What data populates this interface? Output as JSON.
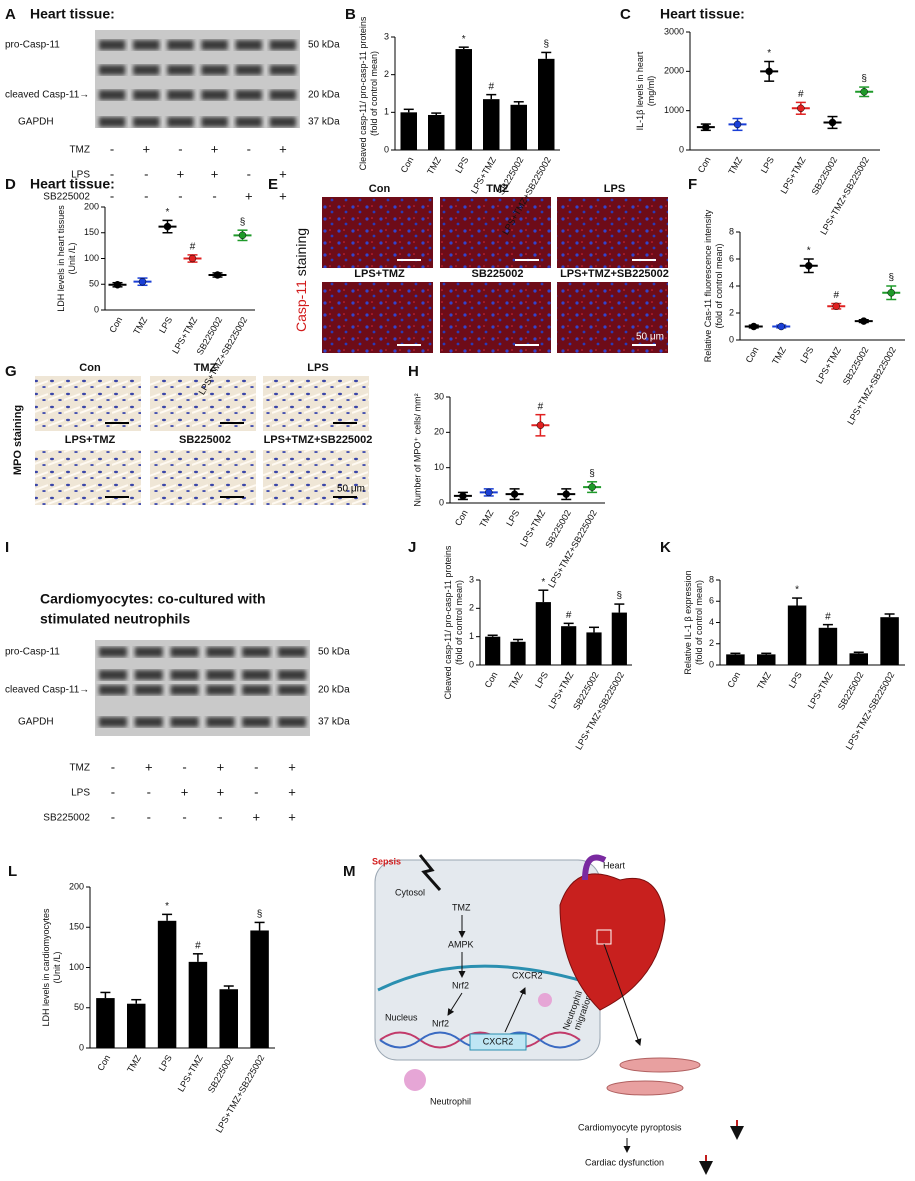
{
  "chart_data": [
    {
      "panel": "B",
      "type": "bar",
      "ylabel": [
        "Cleaved casp-11/ pro-casp-11 proteins",
        "(fold of control mean)"
      ],
      "categories": [
        "Con",
        "TMZ",
        "LPS",
        "LPS+TMZ",
        "SB225002",
        "LPS+TMZ+SB225002"
      ],
      "values": [
        1.0,
        0.93,
        2.68,
        1.35,
        1.2,
        2.42
      ],
      "errors": [
        0.08,
        0.05,
        0.05,
        0.12,
        0.08,
        0.17
      ],
      "annotations": [
        null,
        null,
        "*",
        "#",
        null,
        "§"
      ],
      "color": "#000000",
      "ylim": [
        0,
        3
      ],
      "yticks": [
        0,
        1,
        2,
        3
      ]
    },
    {
      "panel": "C",
      "title": "Heart tissue:",
      "type": "dot",
      "ylabel": [
        "IL-1β levels in heart",
        "(mg/ml)"
      ],
      "categories": [
        "Con",
        "TMZ",
        "LPS",
        "LPS+TMZ",
        "SB225002",
        "LPS+TMZ+SB225002"
      ],
      "values": [
        580,
        650,
        2000,
        1060,
        700,
        1480
      ],
      "errors": [
        80,
        150,
        250,
        150,
        150,
        120
      ],
      "annotations": [
        null,
        null,
        "*",
        "#",
        null,
        "§"
      ],
      "colors": [
        "#000000",
        "#1a3fd6",
        "#000000",
        "#e02020",
        "#000000",
        "#1f9a2a"
      ],
      "ylim": [
        0,
        3000
      ],
      "yticks": [
        0,
        1000,
        2000,
        3000
      ]
    },
    {
      "panel": "D",
      "title": "Heart tissue:",
      "type": "dot",
      "ylabel": [
        "LDH levels in heart tissues",
        "(Unit /L)"
      ],
      "categories": [
        "Con",
        "TMZ",
        "LPS",
        "LPS+TMZ",
        "SB225002",
        "LPS+TMZ+SB225002"
      ],
      "values": [
        49,
        55,
        162,
        100,
        68,
        145
      ],
      "errors": [
        4,
        7,
        12,
        7,
        4,
        10
      ],
      "annotations": [
        null,
        null,
        "*",
        "#",
        null,
        "§"
      ],
      "colors": [
        "#000000",
        "#1a3fd6",
        "#000000",
        "#e02020",
        "#000000",
        "#1f9a2a"
      ],
      "ylim": [
        0,
        200
      ],
      "yticks": [
        0,
        50,
        100,
        150,
        200
      ]
    },
    {
      "panel": "F",
      "type": "dot",
      "ylabel": [
        "Relative Cas-11 fluorescence intensity",
        "(fold of control mean)"
      ],
      "categories": [
        "Con",
        "TMZ",
        "LPS",
        "LPS+TMZ",
        "SB225002",
        "LPS+TMZ+SB225002"
      ],
      "values": [
        1.0,
        1.0,
        5.5,
        2.5,
        1.4,
        3.5
      ],
      "errors": [
        0.1,
        0.1,
        0.5,
        0.2,
        0.1,
        0.5
      ],
      "annotations": [
        null,
        null,
        "*",
        "#",
        null,
        "§"
      ],
      "colors": [
        "#000000",
        "#1a3fd6",
        "#000000",
        "#e02020",
        "#000000",
        "#1f9a2a"
      ],
      "ylim": [
        0,
        8
      ],
      "yticks": [
        0,
        2,
        4,
        6,
        8
      ]
    },
    {
      "panel": "H",
      "type": "dot",
      "ylabel": [
        "Number of MPO⁺ cells/ mm²"
      ],
      "categories": [
        "Con",
        "TMZ",
        "LPS",
        "LPS+TMZ",
        "SB225002",
        "LPS+TMZ+SB225002"
      ],
      "values": [
        2,
        3,
        2.5,
        22,
        2.5,
        4.5
      ],
      "errors": [
        1,
        1,
        1.5,
        3,
        1.5,
        1.5
      ],
      "annotations": [
        null,
        null,
        null,
        "#",
        null,
        "§"
      ],
      "colors": [
        "#000000",
        "#1a3fd6",
        "#000000",
        "#e02020",
        "#000000",
        "#1f9a2a"
      ],
      "ylim": [
        0,
        30
      ],
      "yticks": [
        0,
        10,
        20,
        30
      ]
    },
    {
      "panel": "J",
      "type": "bar",
      "ylabel": [
        "Cleaved casp-11/ pro-casp-11 proteins",
        "(fold of control mean)"
      ],
      "categories": [
        "Con",
        "TMZ",
        "LPS",
        "LPS+TMZ",
        "SB225002",
        "LPS+TMZ+SB225002"
      ],
      "values": [
        1.0,
        0.82,
        2.22,
        1.37,
        1.15,
        1.85
      ],
      "errors": [
        0.05,
        0.08,
        0.42,
        0.1,
        0.18,
        0.3
      ],
      "annotations": [
        null,
        null,
        "*",
        "#",
        null,
        "§"
      ],
      "color": "#000000",
      "ylim": [
        0,
        3
      ],
      "yticks": [
        0,
        1,
        2,
        3
      ]
    },
    {
      "panel": "K",
      "type": "bar",
      "ylabel": [
        "Relative IL-1 β expression",
        "(fold of control mean)"
      ],
      "categories": [
        "Con",
        "TMZ",
        "LPS",
        "LPS+TMZ",
        "SB225002",
        "LPS+TMZ+SB225002"
      ],
      "values": [
        1.0,
        1.0,
        5.6,
        3.5,
        1.1,
        4.5
      ],
      "errors": [
        0.1,
        0.1,
        0.7,
        0.3,
        0.1,
        0.3
      ],
      "annotations": [
        null,
        null,
        "*",
        "#",
        null,
        null
      ],
      "color": "#000000",
      "ylim": [
        0,
        8
      ],
      "yticks": [
        0,
        2,
        4,
        6,
        8
      ]
    },
    {
      "panel": "L",
      "type": "bar",
      "ylabel": [
        "LDH levels in cardiomyocytes",
        "(Unit /L)"
      ],
      "categories": [
        "Con",
        "TMZ",
        "LPS",
        "LPS+TMZ",
        "SB225002",
        "LPS+TMZ+SB225002"
      ],
      "values": [
        62,
        55,
        158,
        107,
        73,
        146
      ],
      "errors": [
        7,
        5,
        8,
        10,
        4,
        10
      ],
      "annotations": [
        null,
        null,
        "*",
        "#",
        null,
        "§"
      ],
      "color": "#000000",
      "ylim": [
        0,
        200
      ],
      "yticks": [
        0,
        50,
        100,
        150,
        200
      ]
    }
  ],
  "blots": [
    {
      "panel": "A",
      "title": [
        "Heart tissue:"
      ],
      "bands": [
        "pro-Casp-11",
        "cleaved Casp-11→",
        "GAPDH"
      ],
      "sizes": [
        "50 kDa",
        "20 kDa",
        "37 kDa"
      ],
      "treatments": [
        {
          "name": "TMZ",
          "signs": [
            "-",
            "+",
            "-",
            "+",
            "-",
            "+"
          ]
        },
        {
          "name": "LPS",
          "signs": [
            "-",
            "-",
            "+",
            "+",
            "-",
            "+"
          ]
        },
        {
          "name": "SB225002",
          "signs": [
            "-",
            "-",
            "-",
            "-",
            "+",
            "+"
          ]
        }
      ]
    },
    {
      "panel": "I",
      "title": [
        "Cardiomyocytes: co-cultured with",
        "stimulated neutrophils"
      ],
      "bands": [
        "pro-Casp-11",
        "cleaved Casp-11→",
        "GAPDH"
      ],
      "sizes": [
        "50 kDa",
        "20 kDa",
        "37 kDa"
      ],
      "treatments": [
        {
          "name": "TMZ",
          "signs": [
            "-",
            "+",
            "-",
            "+",
            "-",
            "+"
          ]
        },
        {
          "name": "LPS",
          "signs": [
            "-",
            "-",
            "+",
            "+",
            "-",
            "+"
          ]
        },
        {
          "name": "SB225002",
          "signs": [
            "-",
            "-",
            "-",
            "-",
            "+",
            "+"
          ]
        }
      ]
    }
  ],
  "stainings": [
    {
      "panel": "E",
      "stain": "Casp-11",
      "stain_suffix": " staining",
      "groups": [
        "Con",
        "TMZ",
        "LPS",
        "LPS+TMZ",
        "SB225002",
        "LPS+TMZ+SB225002"
      ],
      "scale": "50 μm"
    },
    {
      "panel": "G",
      "stain": "MPO staining",
      "groups": [
        "Con",
        "TMZ",
        "LPS",
        "LPS+TMZ",
        "SB225002",
        "LPS+TMZ+SB225002"
      ],
      "scale": "50 μm"
    }
  ],
  "diagram": {
    "panel": "M",
    "sepsis": "Sepsis",
    "heart": "Heart",
    "cytosol": "Cytosol",
    "tmz": "TMZ",
    "ampk": "AMPK",
    "cxcr2_out": "CXCR2",
    "nrf2_cyto": "Nrf2",
    "nucleus": "Nucleus",
    "nrf2_nuc": "Nrf2",
    "cxcr2_gene": "CXCR2",
    "migration": [
      "Neutrophil",
      "migration"
    ],
    "neutrophil": "Neutrophil",
    "pyroptosis": "Cardiomyocyte pyroptosis",
    "dysfunction": "Cardiac dysfunction"
  }
}
